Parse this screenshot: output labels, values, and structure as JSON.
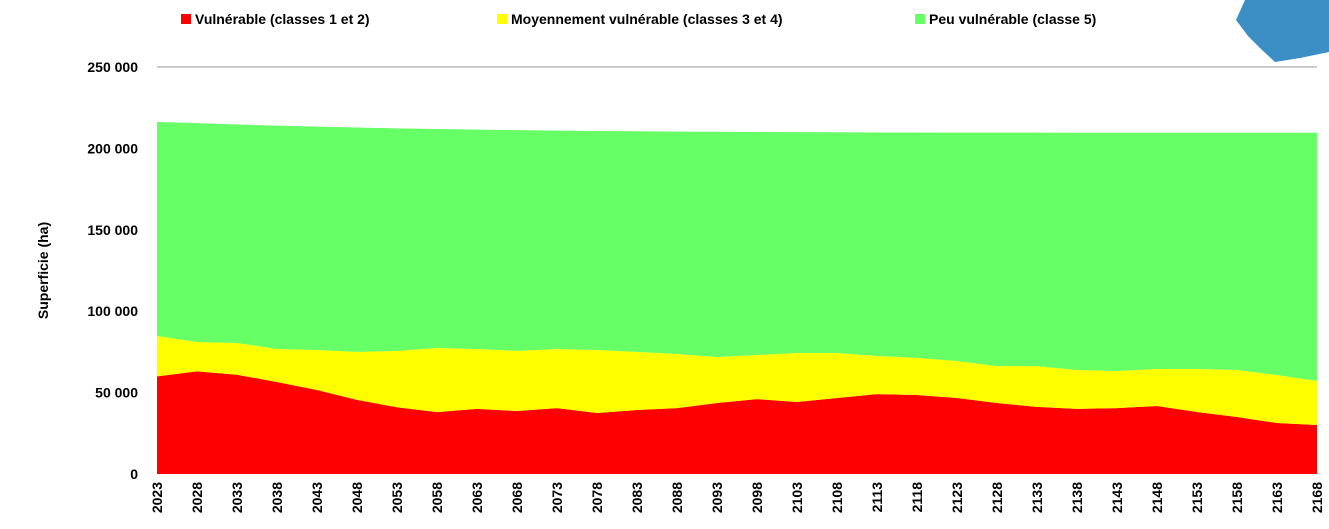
{
  "chart_data": {
    "type": "stacked_area",
    "y_label": "Superficie  (ha)",
    "categories": [
      "2023",
      "2028",
      "2033",
      "2038",
      "2043",
      "2048",
      "2053",
      "2058",
      "2063",
      "2068",
      "2073",
      "2078",
      "2083",
      "2088",
      "2093",
      "2098",
      "2103",
      "2108",
      "2113",
      "2118",
      "2123",
      "2128",
      "2133",
      "2138",
      "2143",
      "2148",
      "2153",
      "2158",
      "2163",
      "2168"
    ],
    "series": [
      {
        "name": "Vulnérable (classes 1 et 2)",
        "color": "#ff0000",
        "values": [
          60000,
          63000,
          61000,
          56500,
          51600,
          45500,
          41000,
          38000,
          40000,
          38700,
          40500,
          37500,
          39300,
          40500,
          43600,
          46000,
          44200,
          46700,
          49100,
          48500,
          46700,
          43600,
          41200,
          40000,
          40500,
          41800,
          38100,
          35000,
          31300,
          30100
        ]
      },
      {
        "name": "Moyennement vulnérable (classes 3 et 4)",
        "color": "#ffff00",
        "values": [
          24800,
          18100,
          19500,
          20300,
          24600,
          29500,
          34600,
          39400,
          36800,
          36900,
          36300,
          38700,
          35700,
          33200,
          28300,
          27100,
          30100,
          27600,
          23400,
          22800,
          22700,
          22700,
          25100,
          23900,
          22800,
          22700,
          26400,
          28900,
          29500,
          27000
        ]
      },
      {
        "name": "Peu vulnérable (classe 5)",
        "color": "#66ff66",
        "values": [
          131400,
          134400,
          134200,
          137200,
          137200,
          137800,
          136700,
          134500,
          134700,
          135600,
          134100,
          134500,
          135500,
          136600,
          138300,
          137000,
          135700,
          135600,
          137300,
          138500,
          140300,
          143400,
          143400,
          145700,
          146300,
          145100,
          145100,
          145700,
          148800,
          152500
        ]
      }
    ],
    "ylim": [
      0,
      250000
    ],
    "yticks": [
      {
        "value": 0,
        "label": "0"
      },
      {
        "value": 50000,
        "label": "50 000"
      },
      {
        "value": 100000,
        "label": "100 000"
      },
      {
        "value": 150000,
        "label": "150 000"
      },
      {
        "value": 200000,
        "label": "200 000"
      },
      {
        "value": 250000,
        "label": "250 000"
      }
    ],
    "grid": false,
    "legend": "top"
  }
}
